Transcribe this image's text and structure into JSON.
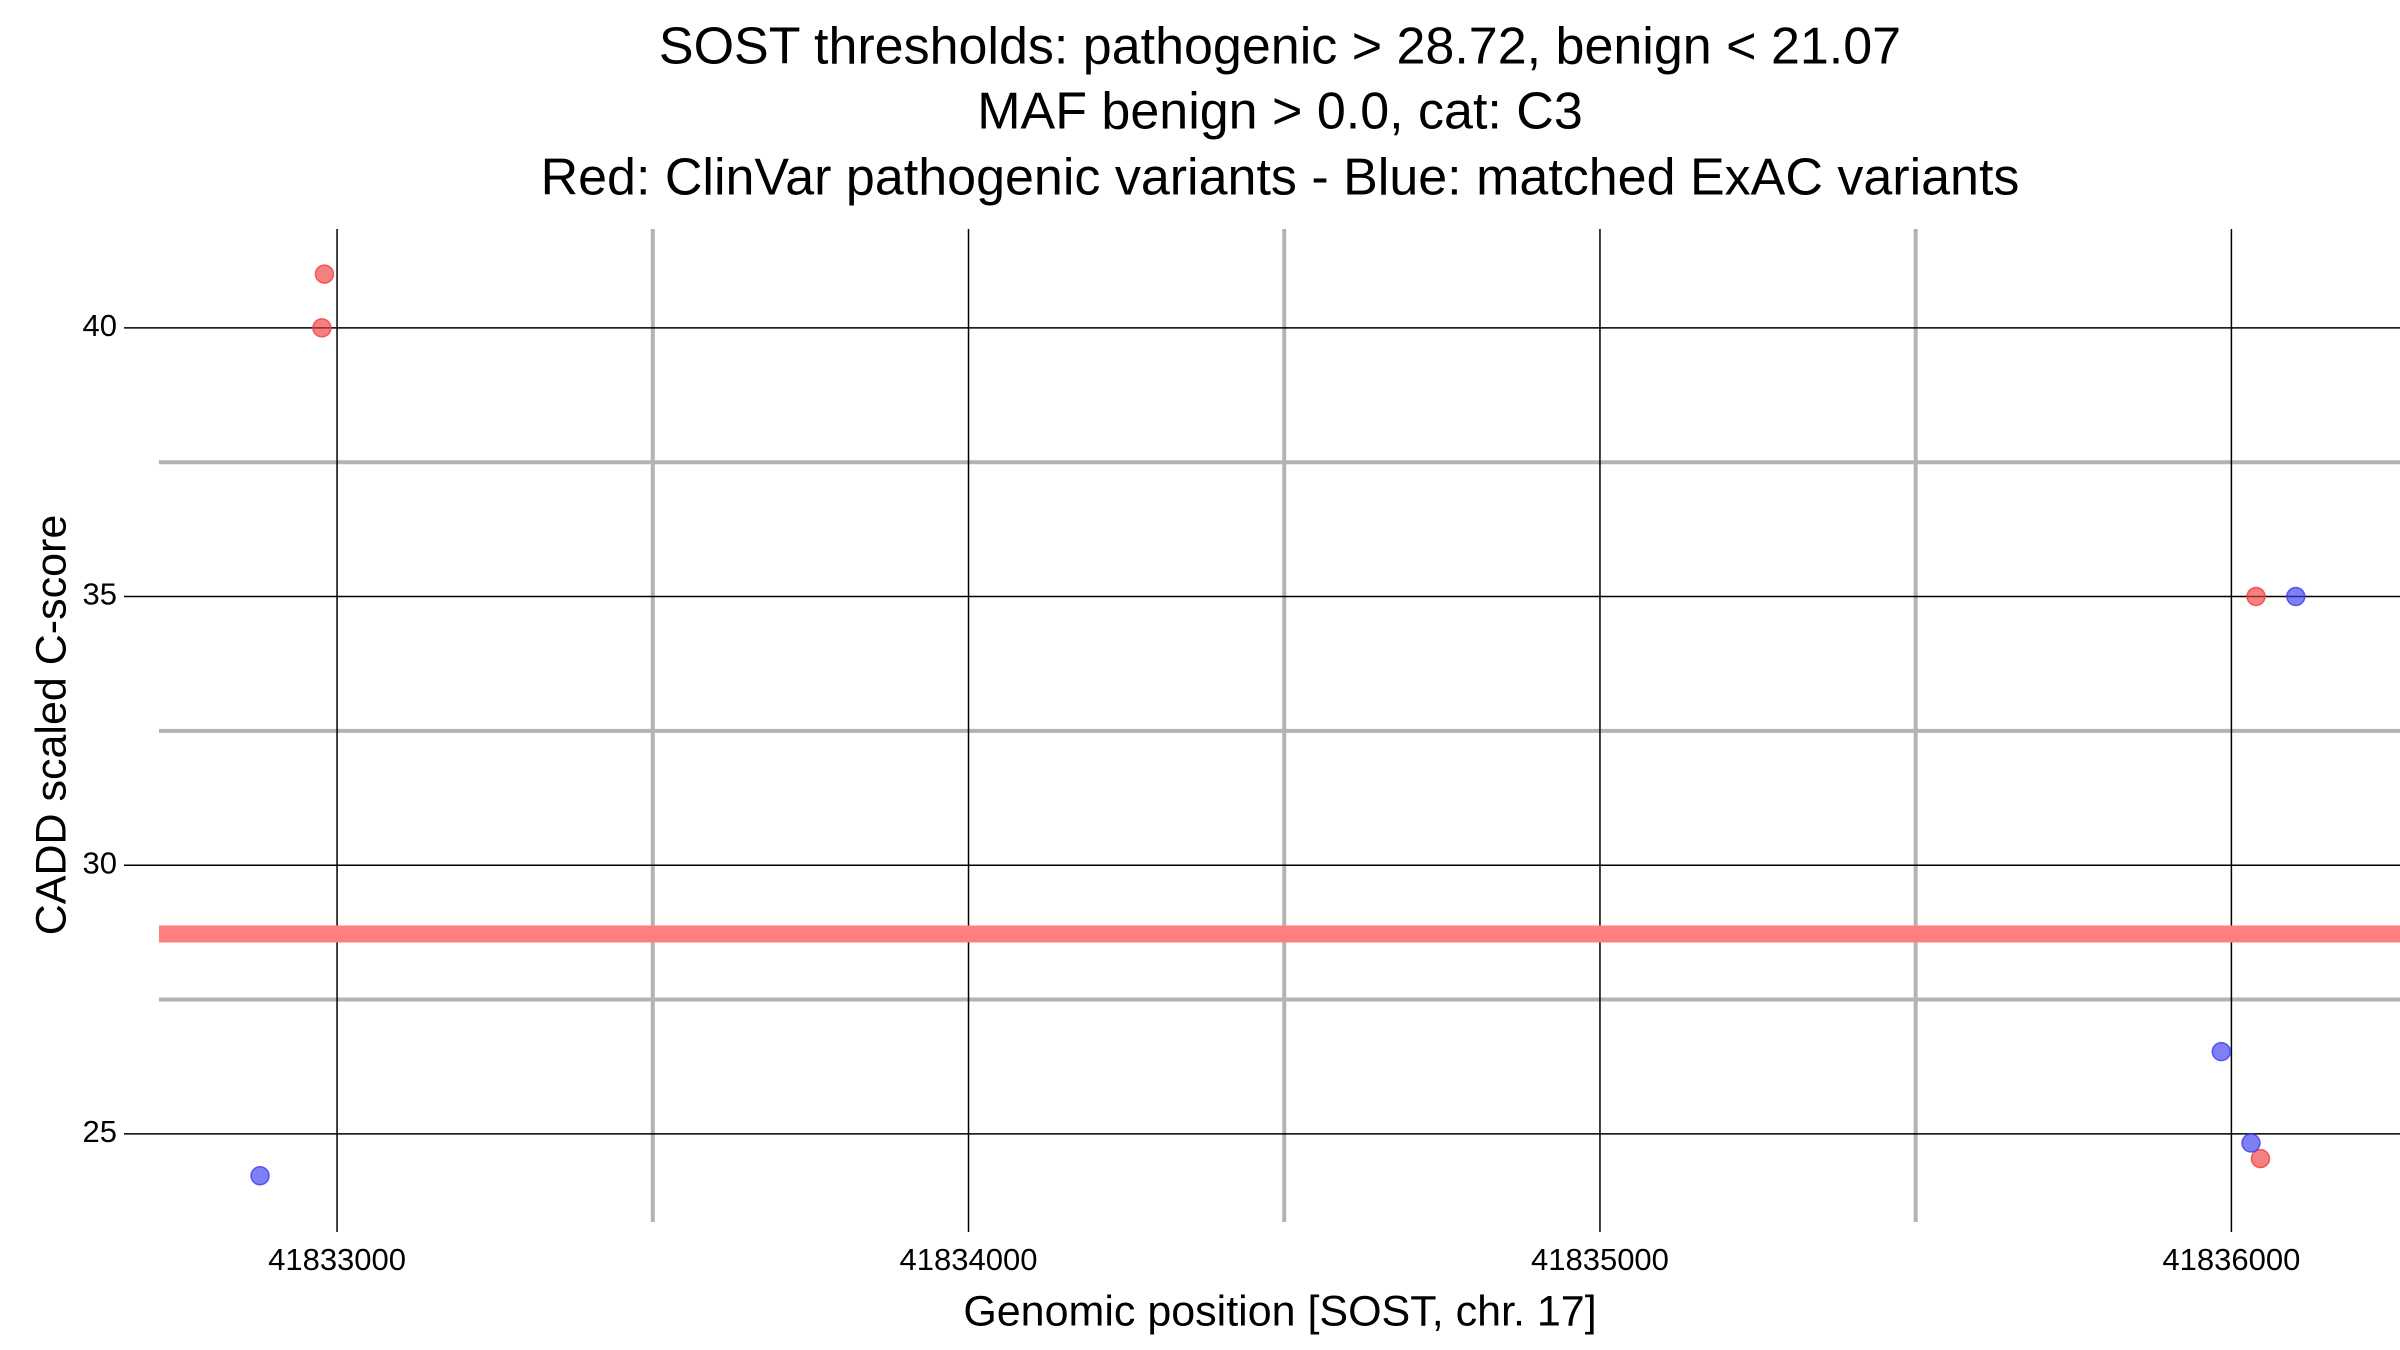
{
  "chart_data": {
    "type": "scatter",
    "title": [
      "SOST thresholds: pathogenic > 28.72, benign < 21.07",
      "MAF benign > 0.0, cat: C3",
      "Red: ClinVar pathogenic variants - Blue: matched ExAC variants"
    ],
    "x_label": "Genomic position [SOST, chr. 17]",
    "y_label": "CADD scaled C-score",
    "xlim": [
      41832718,
      41836267
    ],
    "ylim": [
      23.36,
      41.84
    ],
    "xticks": [
      41833000,
      41834000,
      41835000,
      41836000
    ],
    "yticks": [
      25,
      30,
      35,
      40
    ],
    "minor_xticks": [
      41833500,
      41834500,
      41835500
    ],
    "minor_yticks": [
      27.5,
      32.5,
      37.5
    ],
    "threshold": 28.72,
    "threshold_color": "#ff7f7f",
    "grid": true,
    "series": [
      {
        "name": "ClinVar pathogenic variants",
        "color": "#f03c3c",
        "x": [
          41832976,
          41832980,
          41836039,
          41836046
        ],
        "values": [
          40,
          41,
          35,
          24.54
        ]
      },
      {
        "name": "matched ExAC variants",
        "color": "#3c3cf0",
        "x": [
          41832878,
          41836102,
          41835984,
          41836031
        ],
        "values": [
          24.22,
          35,
          26.53,
          24.83
        ]
      }
    ]
  }
}
